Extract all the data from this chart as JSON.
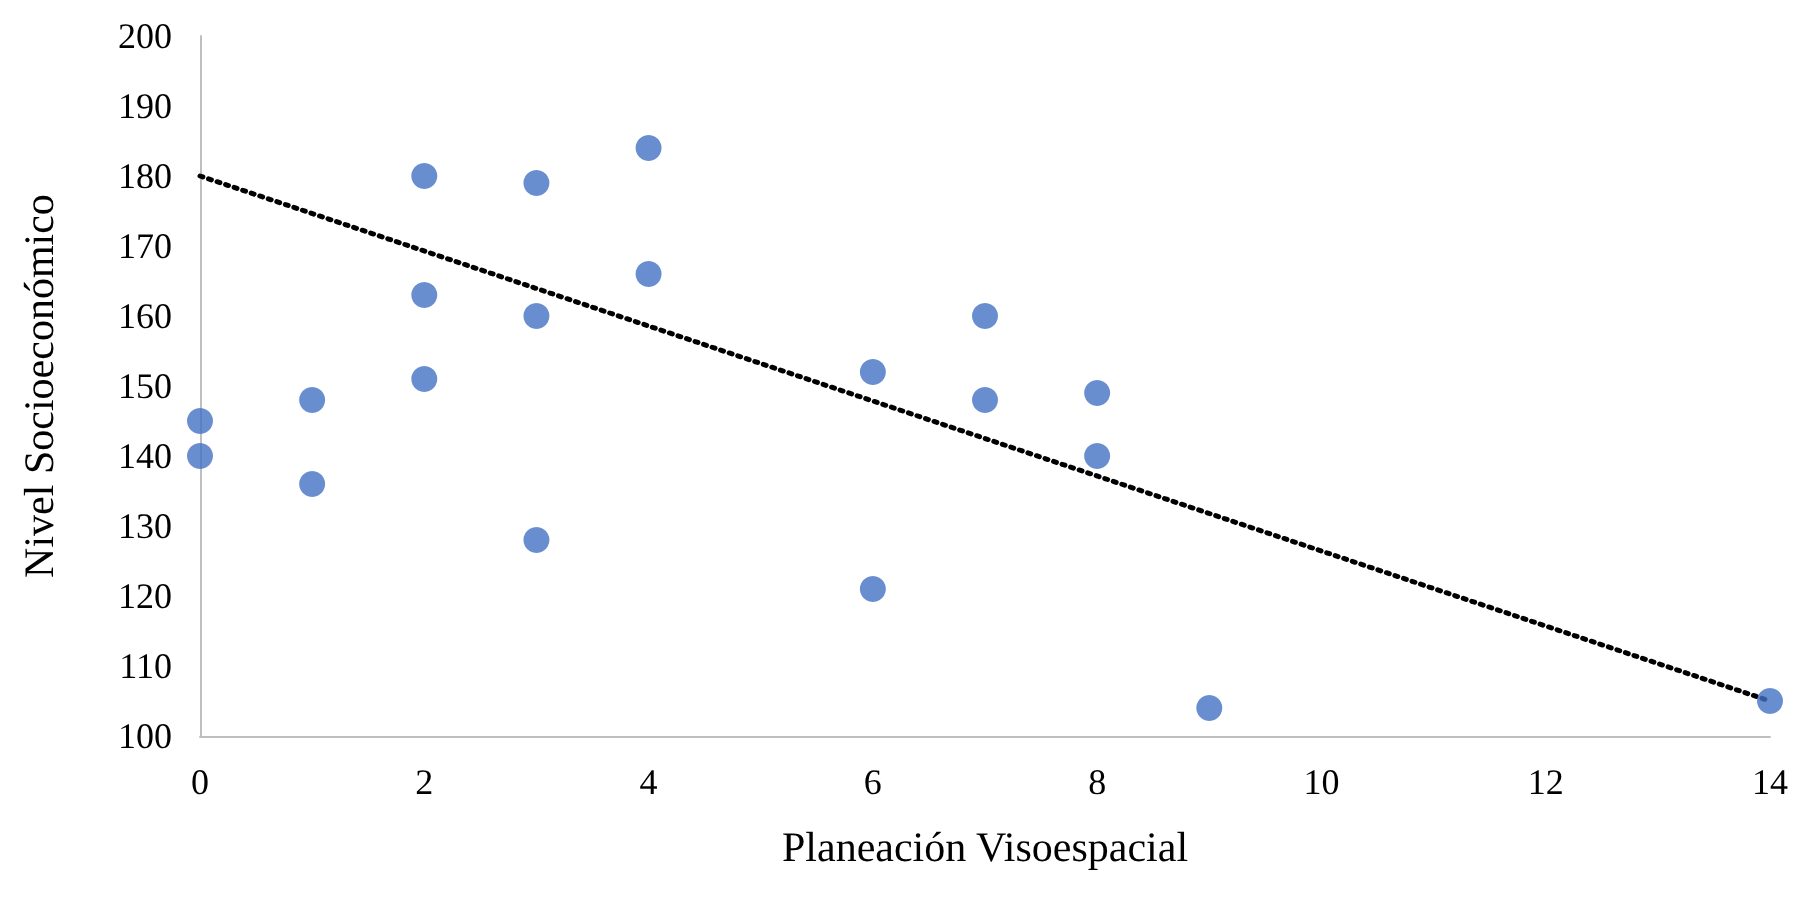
{
  "chart_data": {
    "type": "scatter",
    "xlabel": "Planeación Visoespacial",
    "ylabel": "Nivel Socioeconómico",
    "xlim": [
      0,
      14
    ],
    "xticks": [
      0,
      2,
      4,
      6,
      8,
      10,
      12,
      14
    ],
    "ylim": [
      100,
      200
    ],
    "yticks": [
      100,
      110,
      120,
      130,
      140,
      150,
      160,
      170,
      180,
      190,
      200
    ],
    "marker": "circle",
    "series": [
      {
        "color": "#4472c4",
        "x": [
          0,
          0,
          1,
          1,
          2,
          2,
          2,
          3,
          3,
          3,
          4,
          4,
          6,
          6,
          7,
          7,
          8,
          8,
          9,
          14
        ],
        "values": [
          145,
          140,
          148,
          136,
          180,
          163,
          151,
          179,
          160,
          128,
          184,
          166,
          152,
          121,
          160,
          148,
          149,
          140,
          104,
          105
        ]
      },
      {
        "type": "line",
        "color": "#000000",
        "x": [
          0,
          14
        ],
        "values": [
          180,
          105
        ],
        "line_style": "dotted",
        "marker": "none"
      }
    ]
  }
}
